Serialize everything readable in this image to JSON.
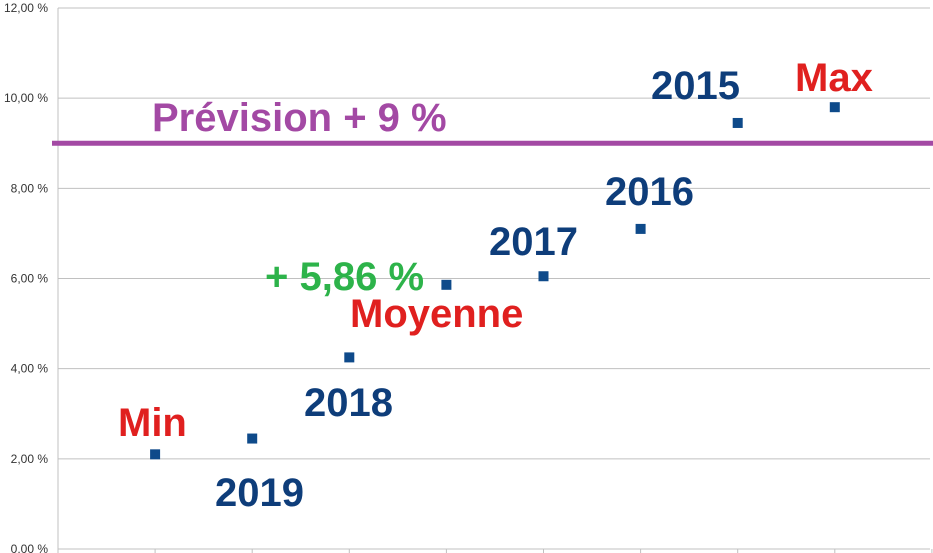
{
  "chart_data": {
    "type": "scatter",
    "title": "",
    "xlabel": "",
    "ylabel": "",
    "ylim": [
      0,
      12
    ],
    "yticks": [
      "0,00 %",
      "2,00 %",
      "4,00 %",
      "6,00 %",
      "8,00 %",
      "10,00 %",
      "12,00 %"
    ],
    "x_slots": 9,
    "grid": true,
    "points": [
      {
        "slot": 1,
        "value": 2.1
      },
      {
        "slot": 2,
        "value": 2.45
      },
      {
        "slot": 3,
        "value": 4.25
      },
      {
        "slot": 4,
        "value": 5.86
      },
      {
        "slot": 5,
        "value": 6.05
      },
      {
        "slot": 6,
        "value": 7.1
      },
      {
        "slot": 7,
        "value": 9.45
      },
      {
        "slot": 8,
        "value": 9.8
      }
    ],
    "reference_line": {
      "value": 9.0,
      "color": "#a349a4",
      "label": "Prévision + 9 %"
    },
    "annotations": [
      {
        "text": "Min",
        "color": "#e0201f"
      },
      {
        "text": "2019",
        "color": "#0e3d7a"
      },
      {
        "text": "2018",
        "color": "#0e3d7a"
      },
      {
        "text": "+ 5,86 %",
        "color": "#2db34a"
      },
      {
        "text": "Moyenne",
        "color": "#e0201f"
      },
      {
        "text": "2017",
        "color": "#0e3d7a"
      },
      {
        "text": "2016",
        "color": "#0e3d7a"
      },
      {
        "text": "2015",
        "color": "#0e3d7a"
      },
      {
        "text": "Max",
        "color": "#e0201f"
      }
    ],
    "marker_color": "#0e4a8a",
    "grid_color": "#c0c0c0"
  }
}
